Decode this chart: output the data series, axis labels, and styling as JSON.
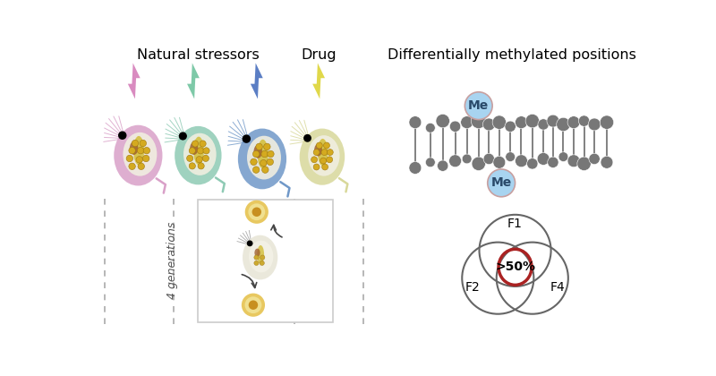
{
  "title_left": "Natural stressors",
  "title_drug": "Drug",
  "title_right": "Differentially methylated positions",
  "generations_label": "4 generations",
  "venn_center_label": ">50%",
  "venn_labels": [
    "F1",
    "F2",
    "F4"
  ],
  "me_label": "Me",
  "background_color": "#ffffff",
  "dna_ball_color": "#777777",
  "me_circle_color": "#a8d4f0",
  "me_border_color": "#c8a0a0",
  "venn_circle_color": "#666666",
  "venn_red_color": "#aa2222",
  "lightning_colors": [
    "#d98bc0",
    "#7ec9a8",
    "#5b7ec4",
    "#e0d84a"
  ],
  "flea_colors": [
    "#d9a0c8",
    "#8ecab4",
    "#7098c8",
    "#d8d89a"
  ],
  "dashed_box_color": "#aaaaaa",
  "arrow_color": "#444444",
  "egg_yolk_color": "#c89020",
  "egg_outer_color": "#e8c860",
  "flea_inner_color": "#e8e4d0",
  "flea_organ_color": "#c8a060"
}
